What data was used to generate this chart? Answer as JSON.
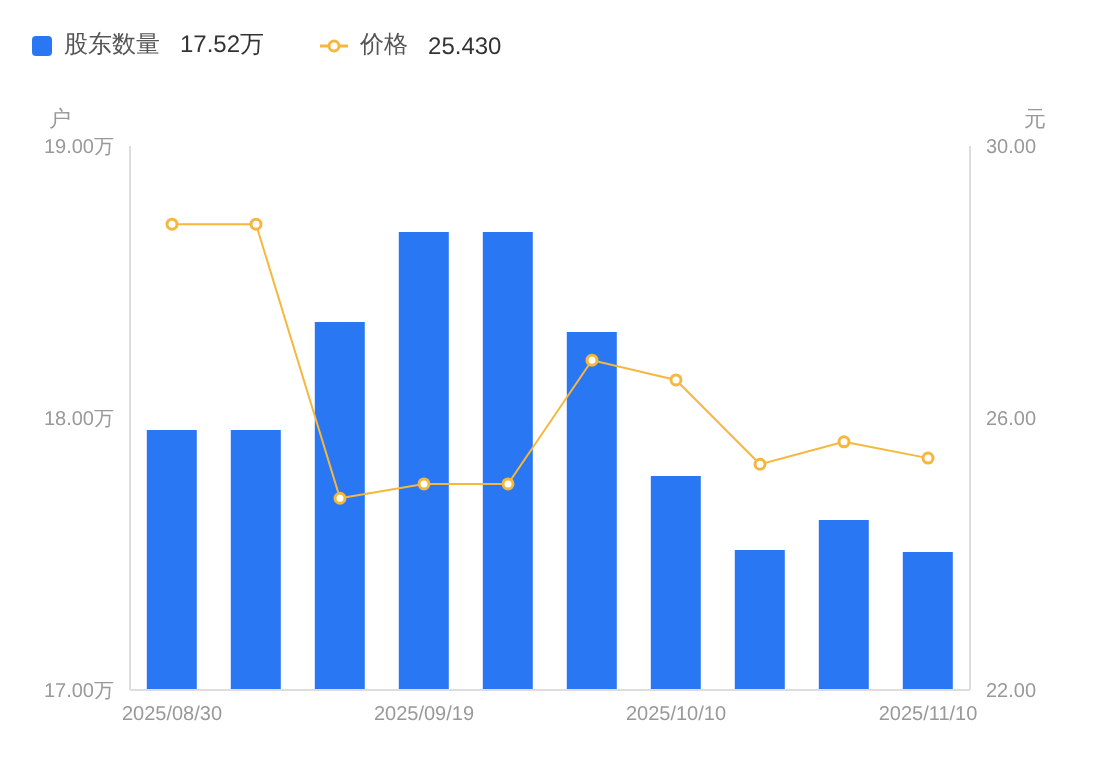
{
  "chart_data": {
    "type": "bar",
    "categories": [
      "2025/08/30",
      null,
      null,
      "2025/09/19",
      null,
      null,
      "2025/10/10",
      null,
      null,
      "2025/11/10"
    ],
    "ylabel": "户",
    "y2label": "元",
    "series": [
      {
        "name": "股东数量",
        "color": "#2a77f4",
        "values": [
          17.956,
          17.956,
          18.353,
          18.684,
          18.684,
          18.316,
          17.787,
          17.515,
          17.625,
          17.507
        ]
      },
      {
        "name": "价格",
        "type": "line",
        "axis": "y2",
        "color": "#f6b73c",
        "marker": "circle",
        "values": [
          28.85,
          28.85,
          24.82,
          25.03,
          25.03,
          26.85,
          26.56,
          25.32,
          25.65,
          25.41
        ]
      }
    ],
    "annotations": [
      "17.52万",
      "25.430"
    ],
    "ylim": [
      17,
      19
    ],
    "yticks": [
      {
        "value": 17,
        "label": "17.00万"
      },
      {
        "value": 18,
        "label": "18.00万"
      },
      {
        "value": 19,
        "label": "19.00万"
      }
    ],
    "y2lim": [
      22,
      30
    ],
    "y2ticks": [
      {
        "value": 22,
        "label": "22.00"
      },
      {
        "value": 26,
        "label": "26.00"
      },
      {
        "value": 30,
        "label": "30.00"
      }
    ],
    "legend": "top left",
    "grid": false
  }
}
